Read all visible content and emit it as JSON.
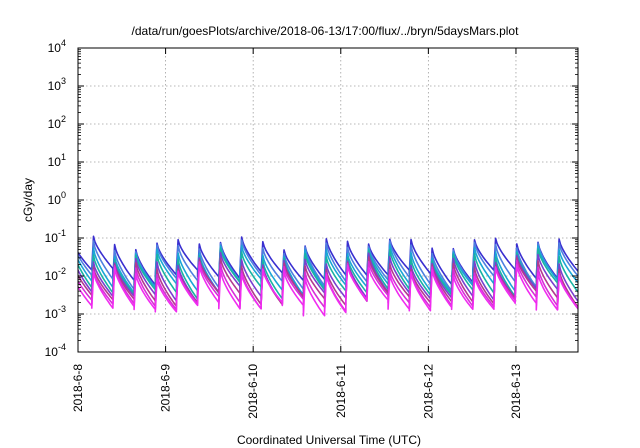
{
  "chart_data": {
    "type": "line",
    "title": "/data/run/goesPlots/archive/2018-06-13/17:00/flux/../bryn/5daysMars.plot",
    "xlabel": "Coordinated Universal Time (UTC)",
    "ylabel": "cGy/day",
    "y_scale": "log",
    "ylim": [
      0.0001,
      10000
    ],
    "xlim": [
      "2018-06-08T00:00",
      "2018-06-13T17:00"
    ],
    "grid": true,
    "legend": "none",
    "y_ticks": [
      {
        "base": "10",
        "exp": "4"
      },
      {
        "base": "10",
        "exp": "3"
      },
      {
        "base": "10",
        "exp": "2"
      },
      {
        "base": "10",
        "exp": "1"
      },
      {
        "base": "10",
        "exp": "0"
      },
      {
        "base": "10",
        "exp": "-1"
      },
      {
        "base": "10",
        "exp": "-2"
      },
      {
        "base": "10",
        "exp": "-3"
      },
      {
        "base": "10",
        "exp": "-4"
      }
    ],
    "x_ticks": [
      "2018-6-8",
      "2018-6-9",
      "2018-6-10",
      "2018-6-11",
      "2018-6-12",
      "2018-6-13"
    ],
    "cycle_hours": 5.8,
    "series": [
      {
        "color": "#3a2fd0",
        "peak": 0.075,
        "trough": 0.012
      },
      {
        "color": "#4e7fe0",
        "peak": 0.06,
        "trough": 0.008
      },
      {
        "color": "#1aa6d6",
        "peak": 0.045,
        "trough": 0.006
      },
      {
        "color": "#19b3a3",
        "peak": 0.035,
        "trough": 0.0045
      },
      {
        "color": "#7a3fd0",
        "peak": 0.026,
        "trough": 0.0035
      },
      {
        "color": "#b23a8e",
        "peak": 0.02,
        "trough": 0.0028
      },
      {
        "color": "#d82ed8",
        "peak": 0.016,
        "trough": 0.0022
      },
      {
        "color": "#f02cf0",
        "peak": 0.013,
        "trough": 0.0018
      }
    ]
  }
}
